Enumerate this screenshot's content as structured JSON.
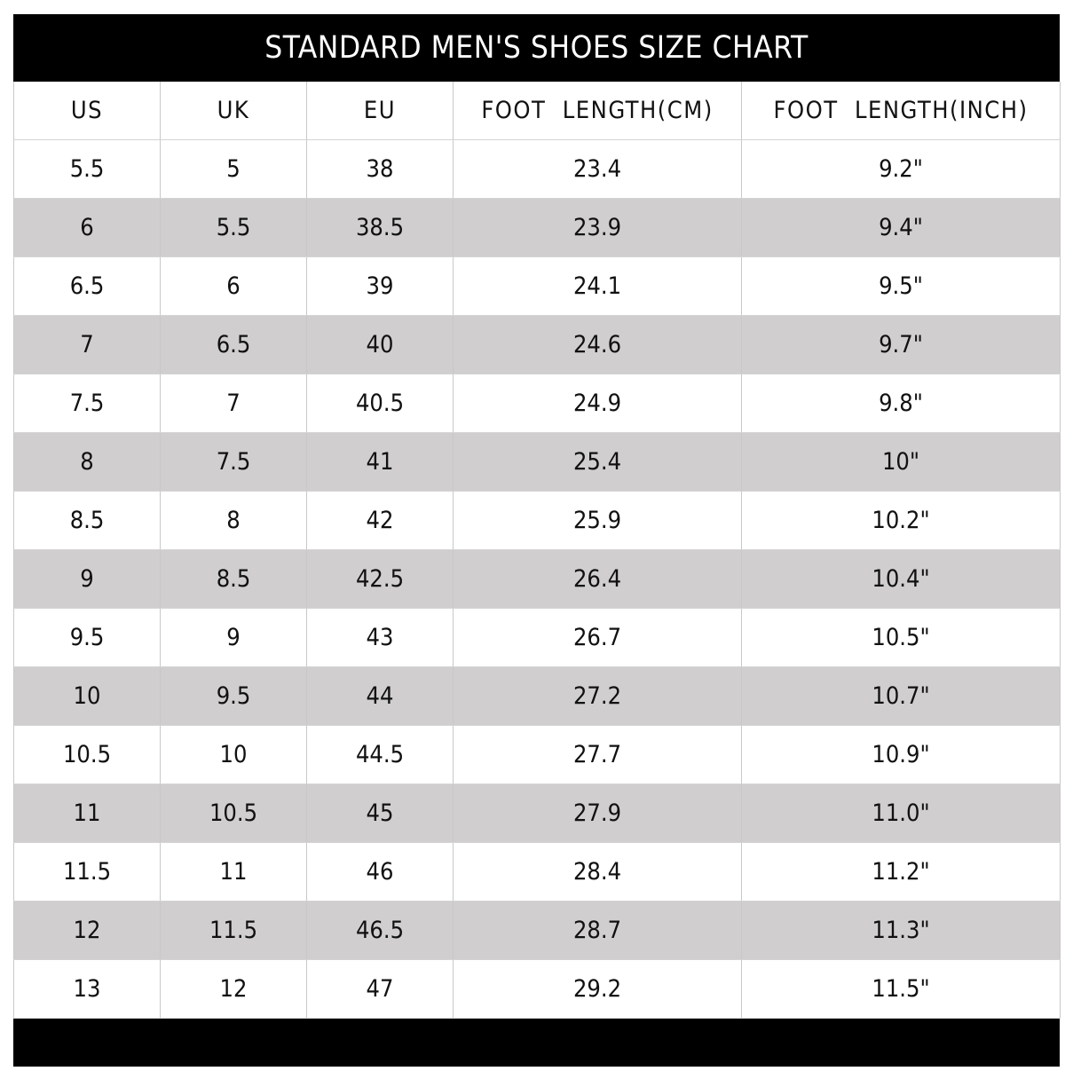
{
  "title": "STANDARD MEN'S SHOES SIZE CHART",
  "columns": [
    "US",
    "UK",
    "EU",
    "FOOT  LENGTH(CM)",
    "FOOT  LENGTH(INCH)"
  ],
  "rows": [
    [
      "5.5",
      "5",
      "38",
      "23.4",
      "9.2\""
    ],
    [
      "6",
      "5.5",
      "38.5",
      "23.9",
      "9.4\""
    ],
    [
      "6.5",
      "6",
      "39",
      "24.1",
      "9.5\""
    ],
    [
      "7",
      "6.5",
      "40",
      "24.6",
      "9.7\""
    ],
    [
      "7.5",
      "7",
      "40.5",
      "24.9",
      "9.8\""
    ],
    [
      "8",
      "7.5",
      "41",
      "25.4",
      "10\""
    ],
    [
      "8.5",
      "8",
      "42",
      "25.9",
      "10.2\""
    ],
    [
      "9",
      "8.5",
      "42.5",
      "26.4",
      "10.4\""
    ],
    [
      "9.5",
      "9",
      "43",
      "26.7",
      "10.5\""
    ],
    [
      "10",
      "9.5",
      "44",
      "27.2",
      "10.7\""
    ],
    [
      "10.5",
      "10",
      "44.5",
      "27.7",
      "10.9\""
    ],
    [
      "11",
      "10.5",
      "45",
      "27.9",
      "11.0\""
    ],
    [
      "11.5",
      "11",
      "46",
      "28.4",
      "11.2\""
    ],
    [
      "12",
      "11.5",
      "46.5",
      "28.7",
      "11.3\""
    ],
    [
      "13",
      "12",
      "47",
      "29.2",
      "11.5\""
    ]
  ],
  "colors": {
    "header_bg": "#000000",
    "header_text": "#ffffff",
    "alt_row_bg": "#d0cecf",
    "row_bg": "#ffffff"
  }
}
